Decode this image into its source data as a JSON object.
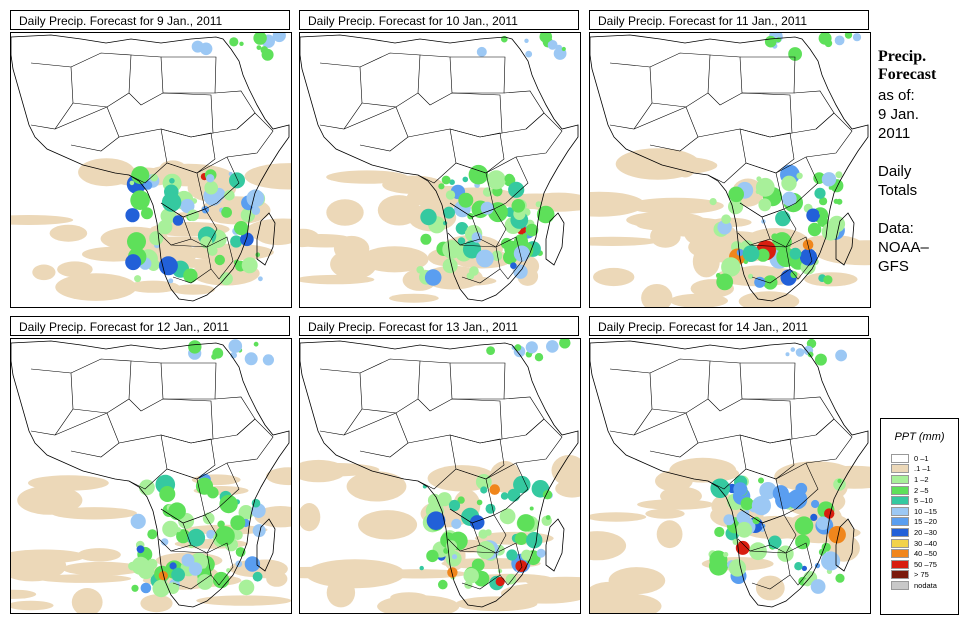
{
  "panels": [
    {
      "title": "Daily Precip. Forecast for  9 Jan., 2011"
    },
    {
      "title": "Daily Precip. Forecast for  10 Jan., 2011"
    },
    {
      "title": "Daily Precip. Forecast for  11 Jan., 2011"
    },
    {
      "title": "Daily Precip. Forecast for  12 Jan., 2011"
    },
    {
      "title": "Daily Precip. Forecast for  13 Jan., 2011"
    },
    {
      "title": "Daily Precip. Forecast for  14 Jan., 2011"
    }
  ],
  "sidebar": {
    "heading1": "Precip.",
    "heading2": "Forecast",
    "asof": "as of:",
    "date1": "9 Jan.",
    "date2": "2011",
    "totals1": "Daily",
    "totals2": "Totals",
    "data_label": "Data:",
    "source1": "NOAA–",
    "source2": "GFS"
  },
  "legend": {
    "title": "PPT (mm)",
    "items": [
      {
        "label": "0 –1",
        "color": "#ffffff"
      },
      {
        "label": ".1 –1",
        "color": "#ecd8b8"
      },
      {
        "label": "1 –2",
        "color": "#a8f09a"
      },
      {
        "label": "2 –5",
        "color": "#5ee05a"
      },
      {
        "label": "5 –10",
        "color": "#35c9a0"
      },
      {
        "label": "10 –15",
        "color": "#9cc8f4"
      },
      {
        "label": "15 –20",
        "color": "#5a9ef0"
      },
      {
        "label": "20 –30",
        "color": "#2260d8"
      },
      {
        "label": "30 –40",
        "color": "#f2d24a"
      },
      {
        "label": "40 –50",
        "color": "#f0861c"
      },
      {
        "label": "50 –75",
        "color": "#d81e10"
      },
      {
        "label": "> 75",
        "color": "#7a1a0c"
      },
      {
        "label": "nodata",
        "color": "#c8c8c8"
      }
    ]
  }
}
